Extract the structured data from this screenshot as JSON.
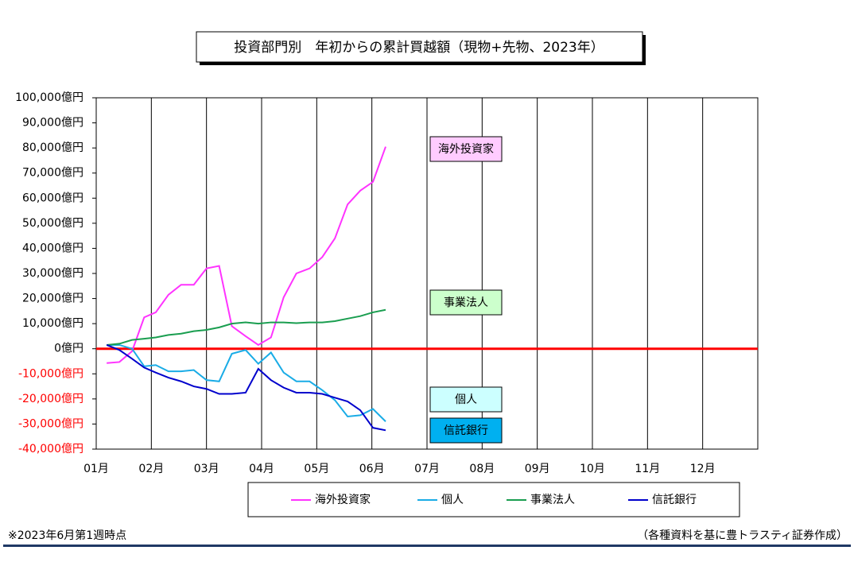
{
  "chart_data": {
    "type": "line",
    "title": "投資部門別　年初からの累計買越額（現物+先物、2023年）",
    "footnote": "※2023年6月第1週時点",
    "source": "（各種資料を基に豊トラスティ証券作成）",
    "x": [
      1.19,
      1.42,
      1.65,
      1.87,
      2.08,
      2.31,
      2.54,
      2.77,
      3.0,
      3.23,
      3.46,
      3.71,
      3.94,
      4.17,
      4.4,
      4.63,
      4.87,
      5.1,
      5.33,
      5.56,
      5.79,
      6.02,
      6.25
    ],
    "series": [
      {
        "name": "海外投資家",
        "color": "#ff33ff",
        "values": [
          -5700,
          -5300,
          -1000,
          12500,
          14500,
          21500,
          25500,
          25500,
          32000,
          33000,
          9000,
          5000,
          1500,
          4500,
          20500,
          30000,
          32000,
          36500,
          44000,
          57500,
          63000,
          66500,
          80500
        ]
      },
      {
        "name": "個人",
        "color": "#1aace6",
        "values": [
          1500,
          1500,
          0,
          -7000,
          -6500,
          -9000,
          -9000,
          -8500,
          -12500,
          -13000,
          -2000,
          -500,
          -6000,
          -1500,
          -9500,
          -13000,
          -13000,
          -16500,
          -20500,
          -27000,
          -26500,
          -24000,
          -29000
        ]
      },
      {
        "name": "事業法人",
        "color": "#1a9e50",
        "values": [
          1500,
          2000,
          3500,
          4000,
          4500,
          5500,
          6000,
          7000,
          7500,
          8500,
          10000,
          10500,
          10000,
          10500,
          10500,
          10200,
          10500,
          10500,
          11000,
          12000,
          13000,
          14500,
          15500
        ]
      },
      {
        "name": "信託銀行",
        "color": "#0000cc",
        "values": [
          1500,
          -500,
          -4000,
          -7500,
          -9500,
          -11500,
          -13000,
          -15000,
          -16000,
          -18000,
          -18000,
          -17500,
          -8000,
          -12500,
          -15500,
          -17500,
          -17500,
          -18000,
          -19500,
          -21000,
          -24500,
          -31500,
          -32500
        ]
      }
    ],
    "annotations": [
      {
        "text": "海外投資家",
        "color": "#ffccff"
      },
      {
        "text": "事業法人",
        "color": "#ccffcc"
      },
      {
        "text": "個人",
        "color": "#ccffff"
      },
      {
        "text": "信託銀行",
        "color": "#00b0f0"
      }
    ],
    "xlim": [
      1,
      13
    ],
    "xticks": [
      {
        "value": 1,
        "label": "01月"
      },
      {
        "value": 2,
        "label": "02月"
      },
      {
        "value": 3,
        "label": "03月"
      },
      {
        "value": 4,
        "label": "04月"
      },
      {
        "value": 5,
        "label": "05月"
      },
      {
        "value": 6,
        "label": "06月"
      },
      {
        "value": 7,
        "label": "07月"
      },
      {
        "value": 8,
        "label": "08月"
      },
      {
        "value": 9,
        "label": "09月"
      },
      {
        "value": 10,
        "label": "10月"
      },
      {
        "value": 11,
        "label": "11月"
      },
      {
        "value": 12,
        "label": "12月"
      }
    ],
    "ylim": [
      -40000,
      100000
    ],
    "yticks": [
      {
        "value": 100000,
        "label": "100,000億円"
      },
      {
        "value": 90000,
        "label": "90,000億円"
      },
      {
        "value": 80000,
        "label": "80,000億円"
      },
      {
        "value": 70000,
        "label": "70,000億円"
      },
      {
        "value": 60000,
        "label": "60,000億円"
      },
      {
        "value": 50000,
        "label": "50,000億円"
      },
      {
        "value": 40000,
        "label": "40,000億円"
      },
      {
        "value": 30000,
        "label": "30,000億円"
      },
      {
        "value": 20000,
        "label": "20,000億円"
      },
      {
        "value": 10000,
        "label": "10,000億円"
      },
      {
        "value": 0,
        "label": "0億円"
      },
      {
        "value": -10000,
        "label": "-10,000億円"
      },
      {
        "value": -20000,
        "label": "-20,000億円"
      },
      {
        "value": -30000,
        "label": "-30,000億円"
      },
      {
        "value": -40000,
        "label": "-40,000億円"
      }
    ],
    "negative_tick_color": "#ff0000",
    "zero_line_color": "#ff0000",
    "grid": "x"
  }
}
